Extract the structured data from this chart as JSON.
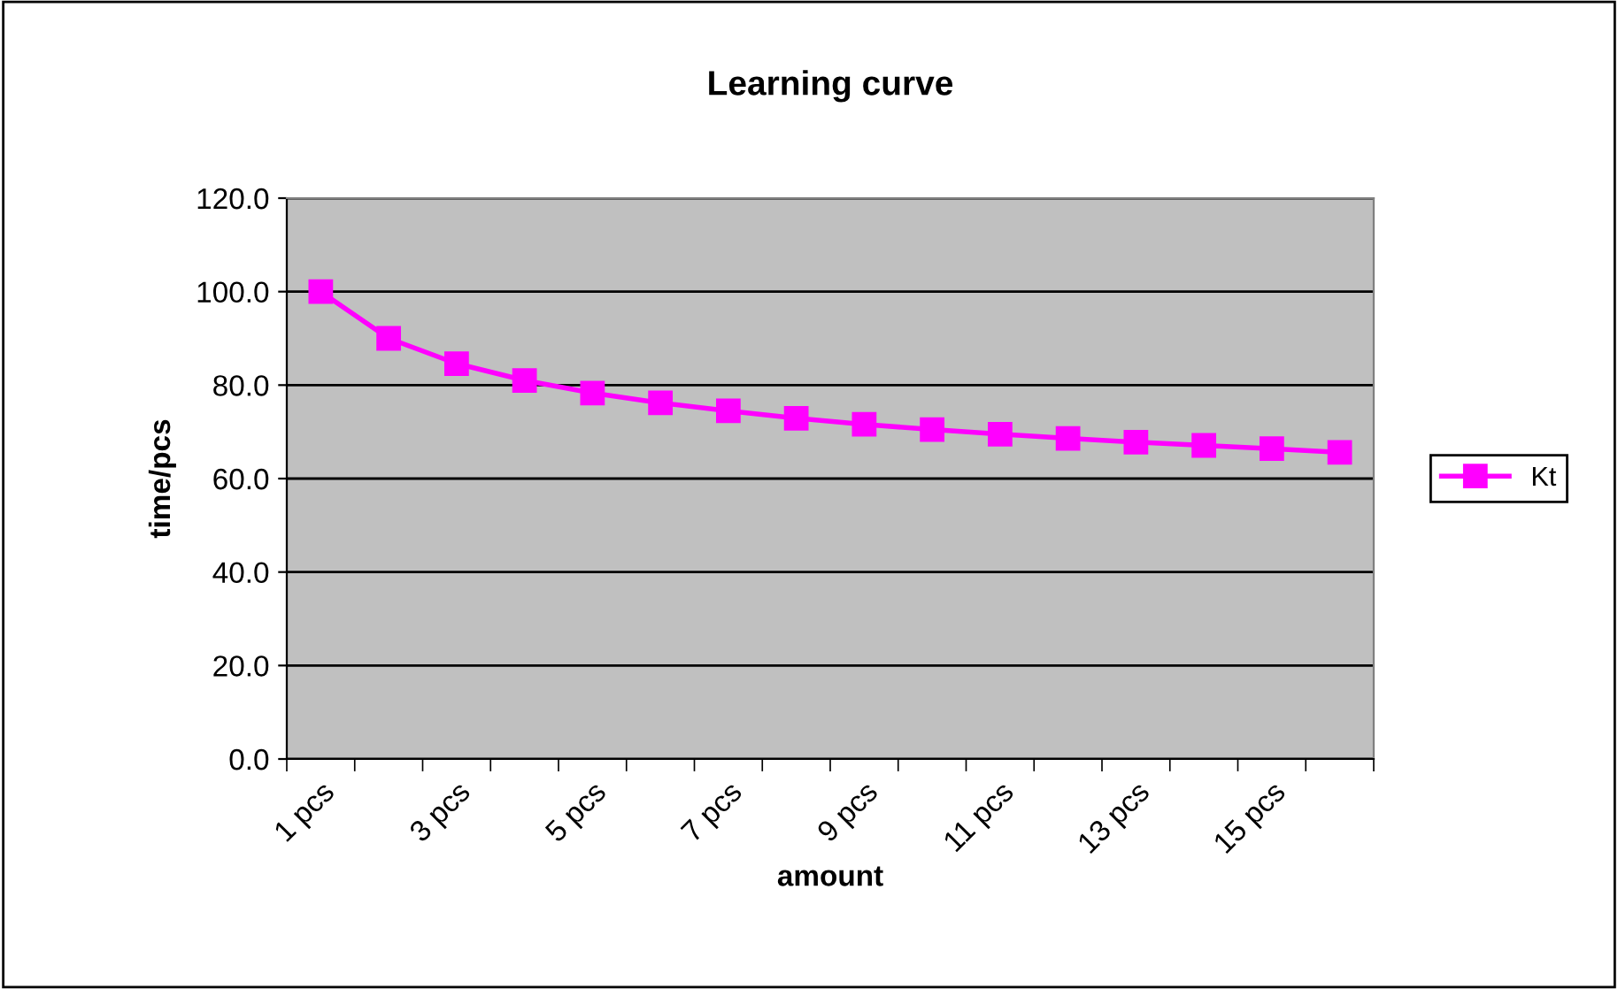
{
  "chart_data": {
    "type": "line",
    "title": "Learning curve",
    "xlabel": "amount",
    "ylabel": "time/pcs",
    "categories": [
      "1 pcs",
      null,
      "3 pcs",
      null,
      "5 pcs",
      null,
      "7 pcs",
      null,
      "9 pcs",
      null,
      "11 pcs",
      null,
      "13 pcs",
      null,
      "15 pcs",
      null
    ],
    "series": [
      {
        "name": "Kt",
        "color": "#ff00ff",
        "values": [
          100,
          90,
          84.6,
          81,
          78.3,
          76.2,
          74.5,
          72.9,
          71.6,
          70.5,
          69.5,
          68.6,
          67.8,
          67.1,
          66.4,
          65.6
        ]
      }
    ],
    "ylim": [
      0,
      120
    ],
    "yticks": [
      {
        "value": 0,
        "label": "0.0"
      },
      {
        "value": 20,
        "label": "20.0"
      },
      {
        "value": 40,
        "label": "40.0"
      },
      {
        "value": 60,
        "label": "60.0"
      },
      {
        "value": 80,
        "label": "80.0"
      },
      {
        "value": 100,
        "label": "100.0"
      },
      {
        "value": 120,
        "label": "120.0"
      }
    ],
    "grid": "y",
    "legend": "right",
    "marker": "square",
    "line_style": "solid"
  }
}
